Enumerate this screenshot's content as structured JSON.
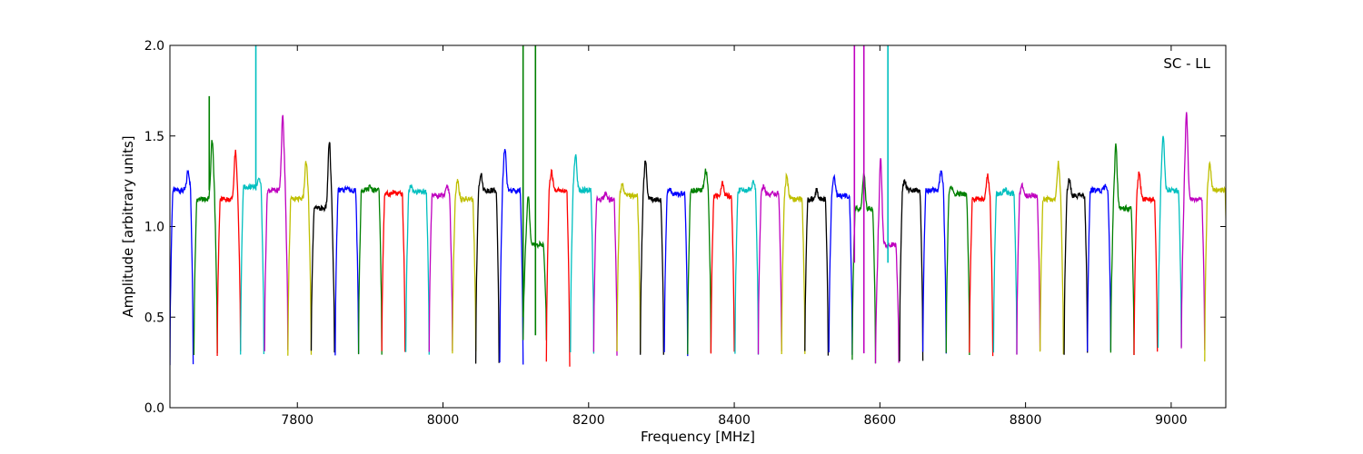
{
  "chart_data": {
    "type": "line",
    "title": "",
    "xlabel": "Frequency [MHz]",
    "ylabel": "Amplitude [arbitrary units]",
    "annotation": "SC - LL",
    "legend_position": "top-right",
    "xlim": [
      7625,
      9075
    ],
    "ylim": [
      0.0,
      2.0
    ],
    "grid": false,
    "x_ticks": [
      7800,
      8000,
      8200,
      8400,
      8600,
      8800,
      9000
    ],
    "x_tick_labels": [
      "7800",
      "8000",
      "8200",
      "8400",
      "8600",
      "8800",
      "9000"
    ],
    "y_ticks": [
      0.0,
      0.5,
      1.0,
      1.5,
      2.0
    ],
    "y_tick_labels": [
      "0.0",
      "0.5",
      "1.0",
      "1.5",
      "2.0"
    ],
    "colors": [
      "#0000ff",
      "#008000",
      "#ff0000",
      "#00bfbf",
      "#bf00bf",
      "#bfbf00",
      "#000000"
    ],
    "band_width_mhz": 32,
    "series": [
      {
        "x_start": 7625,
        "low": 0.25,
        "plateau": 1.2,
        "peak": 1.31,
        "peak_pos": "right",
        "color": "#0000ff"
      },
      {
        "x_start": 7658,
        "low": 0.3,
        "plateau": 1.15,
        "peak": 1.48,
        "peak_pos": "right",
        "color": "#008000"
      },
      {
        "x_start": 7690,
        "low": 0.3,
        "plateau": 1.15,
        "peak": 1.41,
        "peak_pos": "right",
        "color": "#ff0000"
      },
      {
        "x_start": 7722,
        "low": 0.3,
        "plateau": 1.22,
        "peak": 1.27,
        "peak_pos": "right",
        "color": "#00bfbf"
      },
      {
        "x_start": 7755,
        "low": 0.32,
        "plateau": 1.2,
        "peak": 1.61,
        "peak_pos": "right",
        "color": "#bf00bf"
      },
      {
        "x_start": 7787,
        "low": 0.3,
        "plateau": 1.15,
        "peak": 1.36,
        "peak_pos": "right",
        "color": "#bfbf00"
      },
      {
        "x_start": 7819,
        "low": 0.3,
        "plateau": 1.1,
        "peak": 1.47,
        "peak_pos": "right",
        "color": "#000000"
      },
      {
        "x_start": 7852,
        "low": 0.3,
        "plateau": 1.2,
        "peak": 1.22,
        "peak_pos": "center",
        "color": "#0000ff"
      },
      {
        "x_start": 7884,
        "low": 0.3,
        "plateau": 1.2,
        "peak": 1.22,
        "peak_pos": "center",
        "color": "#008000"
      },
      {
        "x_start": 7916,
        "low": 0.3,
        "plateau": 1.18,
        "peak": 1.19,
        "peak_pos": "center",
        "color": "#ff0000"
      },
      {
        "x_start": 7949,
        "low": 0.3,
        "plateau": 1.19,
        "peak": 1.22,
        "peak_pos": "left",
        "color": "#00bfbf"
      },
      {
        "x_start": 7981,
        "low": 0.3,
        "plateau": 1.17,
        "peak": 1.22,
        "peak_pos": "right",
        "color": "#bf00bf"
      },
      {
        "x_start": 8013,
        "low": 0.3,
        "plateau": 1.15,
        "peak": 1.26,
        "peak_pos": "left",
        "color": "#bfbf00"
      },
      {
        "x_start": 8045,
        "low": 0.25,
        "plateau": 1.2,
        "peak": 1.29,
        "peak_pos": "left",
        "color": "#000000"
      },
      {
        "x_start": 8078,
        "low": 0.25,
        "plateau": 1.2,
        "peak": 1.44,
        "peak_pos": "left",
        "color": "#0000ff"
      },
      {
        "x_start": 8110,
        "low": 0.37,
        "plateau": 0.9,
        "peak": 1.17,
        "peak_pos": "left",
        "color": "#008000"
      },
      {
        "x_start": 8142,
        "low": 0.24,
        "plateau": 1.2,
        "peak": 1.3,
        "peak_pos": "left",
        "color": "#ff0000"
      },
      {
        "x_start": 8175,
        "low": 0.3,
        "plateau": 1.2,
        "peak": 1.39,
        "peak_pos": "left",
        "color": "#00bfbf"
      },
      {
        "x_start": 8207,
        "low": 0.3,
        "plateau": 1.15,
        "peak": 1.18,
        "peak_pos": "center",
        "color": "#bf00bf"
      },
      {
        "x_start": 8239,
        "low": 0.3,
        "plateau": 1.17,
        "peak": 1.23,
        "peak_pos": "left",
        "color": "#bfbf00"
      },
      {
        "x_start": 8271,
        "low": 0.3,
        "plateau": 1.15,
        "peak": 1.37,
        "peak_pos": "left",
        "color": "#000000"
      },
      {
        "x_start": 8304,
        "low": 0.3,
        "plateau": 1.18,
        "peak": 1.21,
        "peak_pos": "left",
        "color": "#0000ff"
      },
      {
        "x_start": 8336,
        "low": 0.3,
        "plateau": 1.2,
        "peak": 1.31,
        "peak_pos": "right",
        "color": "#008000"
      },
      {
        "x_start": 8368,
        "low": 0.3,
        "plateau": 1.17,
        "peak": 1.24,
        "peak_pos": "center",
        "color": "#ff0000"
      },
      {
        "x_start": 8401,
        "low": 0.3,
        "plateau": 1.2,
        "peak": 1.25,
        "peak_pos": "right",
        "color": "#00bfbf"
      },
      {
        "x_start": 8433,
        "low": 0.3,
        "plateau": 1.18,
        "peak": 1.22,
        "peak_pos": "left",
        "color": "#bf00bf"
      },
      {
        "x_start": 8465,
        "low": 0.3,
        "plateau": 1.15,
        "peak": 1.28,
        "peak_pos": "left",
        "color": "#bfbf00"
      },
      {
        "x_start": 8497,
        "low": 0.3,
        "plateau": 1.15,
        "peak": 1.2,
        "peak_pos": "center",
        "color": "#000000"
      },
      {
        "x_start": 8530,
        "low": 0.3,
        "plateau": 1.17,
        "peak": 1.27,
        "peak_pos": "left",
        "color": "#0000ff"
      },
      {
        "x_start": 8562,
        "low": 0.25,
        "plateau": 1.1,
        "peak": 1.29,
        "peak_pos": "center",
        "color": "#008000"
      },
      {
        "x_start": 8594,
        "low": 0.25,
        "plateau": 0.9,
        "peak": 1.38,
        "peak_pos": "left",
        "color": "#bf00bf"
      },
      {
        "x_start": 8627,
        "low": 0.26,
        "plateau": 1.2,
        "peak": 1.25,
        "peak_pos": "left",
        "color": "#000000"
      },
      {
        "x_start": 8659,
        "low": 0.3,
        "plateau": 1.2,
        "peak": 1.31,
        "peak_pos": "right",
        "color": "#0000ff"
      },
      {
        "x_start": 8691,
        "low": 0.3,
        "plateau": 1.18,
        "peak": 1.22,
        "peak_pos": "left",
        "color": "#008000"
      },
      {
        "x_start": 8723,
        "low": 0.3,
        "plateau": 1.15,
        "peak": 1.28,
        "peak_pos": "right",
        "color": "#ff0000"
      },
      {
        "x_start": 8756,
        "low": 0.3,
        "plateau": 1.18,
        "peak": 1.21,
        "peak_pos": "center",
        "color": "#00bfbf"
      },
      {
        "x_start": 8788,
        "low": 0.3,
        "plateau": 1.17,
        "peak": 1.23,
        "peak_pos": "left",
        "color": "#bf00bf"
      },
      {
        "x_start": 8820,
        "low": 0.3,
        "plateau": 1.15,
        "peak": 1.35,
        "peak_pos": "right",
        "color": "#bfbf00"
      },
      {
        "x_start": 8853,
        "low": 0.3,
        "plateau": 1.17,
        "peak": 1.26,
        "peak_pos": "left",
        "color": "#000000"
      },
      {
        "x_start": 8885,
        "low": 0.3,
        "plateau": 1.2,
        "peak": 1.23,
        "peak_pos": "right",
        "color": "#0000ff"
      },
      {
        "x_start": 8917,
        "low": 0.3,
        "plateau": 1.1,
        "peak": 1.45,
        "peak_pos": "left",
        "color": "#008000"
      },
      {
        "x_start": 8949,
        "low": 0.3,
        "plateau": 1.15,
        "peak": 1.3,
        "peak_pos": "left",
        "color": "#ff0000"
      },
      {
        "x_start": 8982,
        "low": 0.33,
        "plateau": 1.2,
        "peak": 1.5,
        "peak_pos": "left",
        "color": "#00bfbf"
      },
      {
        "x_start": 9014,
        "low": 0.33,
        "plateau": 1.15,
        "peak": 1.62,
        "peak_pos": "left",
        "color": "#bf00bf"
      },
      {
        "x_start": 9046,
        "low": 0.25,
        "plateau": 1.2,
        "peak": 1.34,
        "peak_pos": "left",
        "color": "#bfbf00"
      }
    ],
    "spikes": [
      {
        "x": 7679,
        "y_from": 1.2,
        "y_to": 1.72,
        "color": "#008000"
      },
      {
        "x": 7743,
        "y_from": 1.2,
        "y_to": 2.0,
        "color": "#00bfbf"
      },
      {
        "x": 8110,
        "y_from": 0.5,
        "y_to": 2.0,
        "color": "#008000"
      },
      {
        "x": 8127,
        "y_from": 0.4,
        "y_to": 2.0,
        "color": "#008000"
      },
      {
        "x": 8565,
        "y_from": 0.8,
        "y_to": 2.0,
        "color": "#bf00bf"
      },
      {
        "x": 8578,
        "y_from": 0.3,
        "y_to": 2.0,
        "color": "#bf00bf"
      },
      {
        "x": 8611,
        "y_from": 0.8,
        "y_to": 2.0,
        "color": "#00bfbf"
      }
    ]
  }
}
